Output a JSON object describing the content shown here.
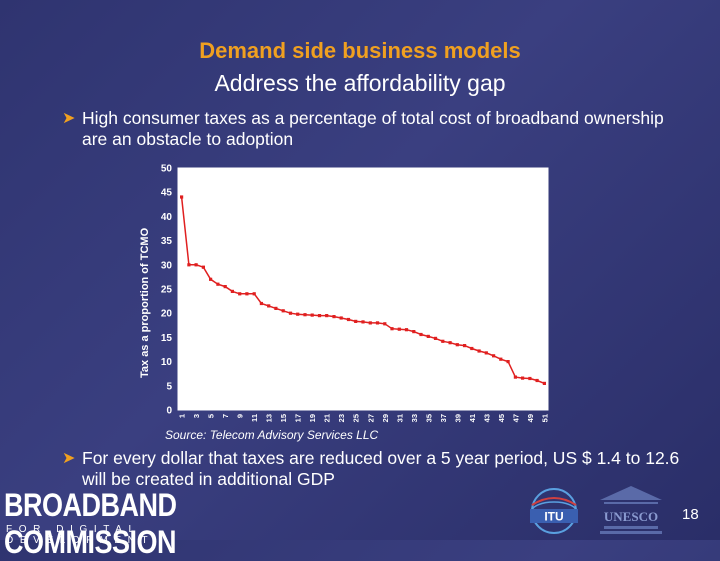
{
  "slide": {
    "title": "Demand side business models",
    "subtitle": "Address the affordability gap",
    "bullet1": "High consumer taxes as a percentage of total cost of broadband ownership are an obstacle to adoption",
    "bullet2": "For every dollar that taxes are reduced over a 5 year period, US $ 1.4 to 12.6 will be created in additional GDP",
    "source": "Source: Telecom Advisory Services LLC",
    "page_number": "18",
    "accent_color": "#f0a020",
    "background_color": "#2f3470"
  },
  "logos": {
    "broadband_commission": "BROADBAND COMMISSION",
    "broadband_tagline": "FOR DIGITAL DEVELOPMENT",
    "itu": "ITU",
    "unesco": "UNESCO"
  },
  "icons": {
    "bullet": "arrow-bullet-icon"
  },
  "chart_data": {
    "type": "line",
    "title": "",
    "xlabel": "",
    "ylabel": "Tax as a proportion of TCMO",
    "ylim": [
      0,
      50
    ],
    "yticks": [
      0,
      5,
      10,
      15,
      20,
      25,
      30,
      35,
      40,
      45,
      50
    ],
    "xticks": [
      1,
      3,
      5,
      7,
      9,
      11,
      13,
      15,
      17,
      19,
      21,
      23,
      25,
      27,
      29,
      31,
      33,
      35,
      37,
      39,
      41,
      43,
      45,
      47,
      49,
      51
    ],
    "grid": false,
    "series_color": "#e02020",
    "x": [
      1,
      2,
      3,
      4,
      5,
      6,
      7,
      8,
      9,
      10,
      11,
      12,
      13,
      14,
      15,
      16,
      17,
      18,
      19,
      20,
      21,
      22,
      23,
      24,
      25,
      26,
      27,
      28,
      29,
      30,
      31,
      32,
      33,
      34,
      35,
      36,
      37,
      38,
      39,
      40,
      41,
      42,
      43,
      44,
      45,
      46,
      47,
      48,
      49,
      50,
      51
    ],
    "values": [
      44,
      30,
      30,
      29.5,
      27,
      26,
      25.5,
      24.5,
      24,
      24,
      24,
      22,
      21.5,
      21,
      20.5,
      20,
      19.8,
      19.7,
      19.6,
      19.5,
      19.5,
      19.3,
      19,
      18.7,
      18.3,
      18.2,
      18,
      18,
      17.8,
      16.8,
      16.7,
      16.6,
      16.2,
      15.6,
      15.2,
      14.8,
      14.2,
      13.9,
      13.5,
      13.3,
      12.7,
      12.2,
      11.8,
      11.2,
      10.5,
      10,
      6.8,
      6.6,
      6.5,
      6.1,
      5.5
    ]
  }
}
